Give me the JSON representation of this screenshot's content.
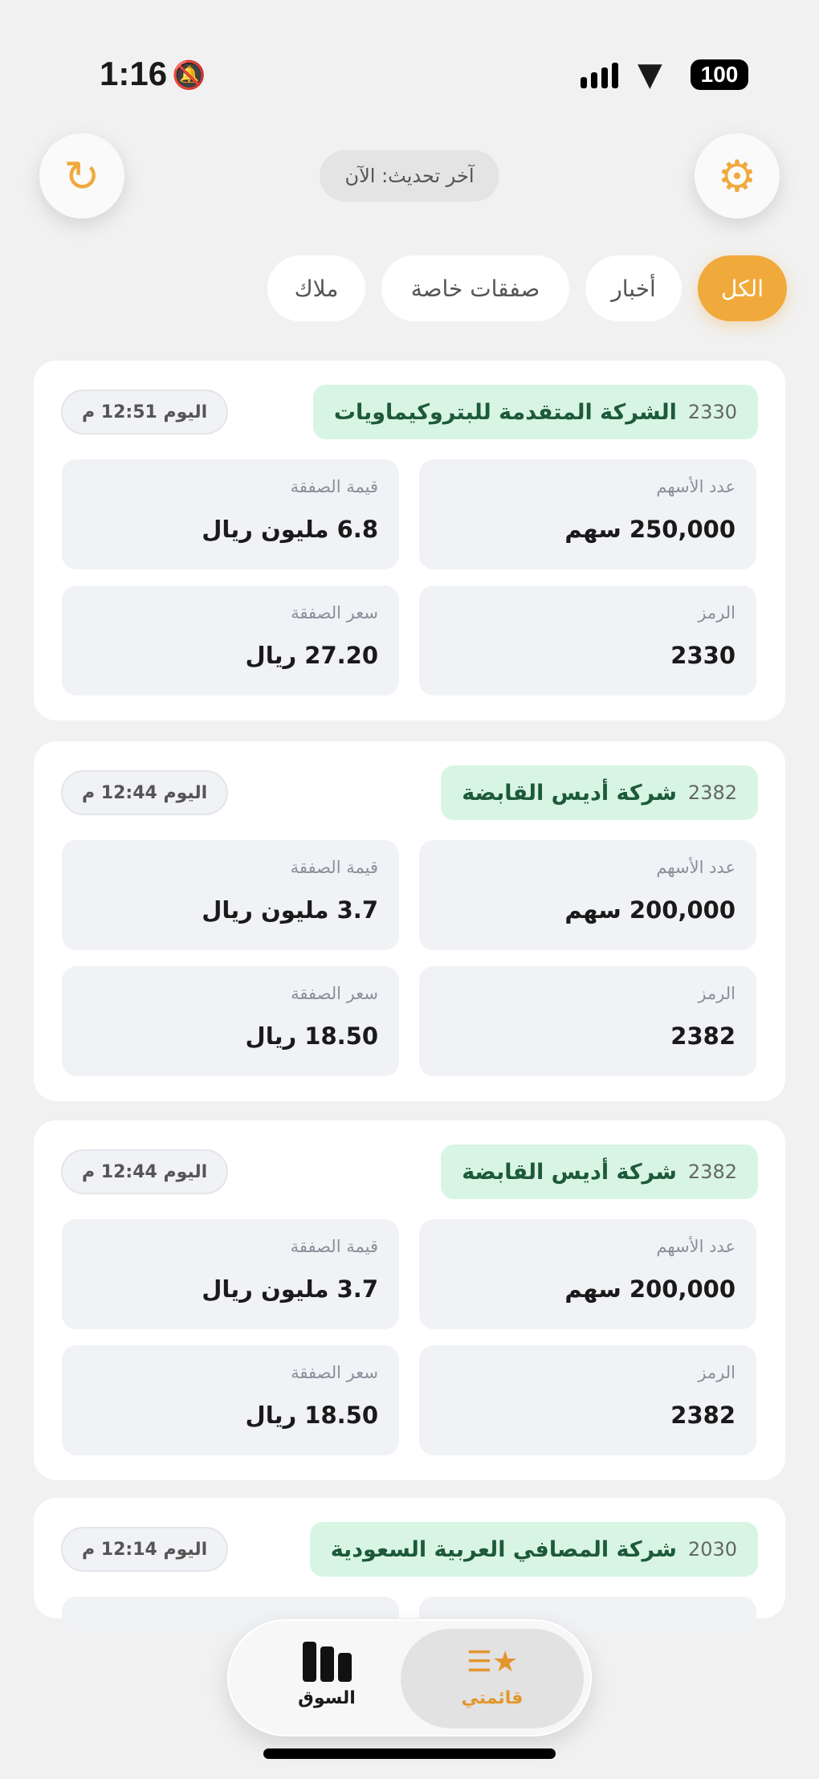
{
  "status_bar": {
    "time": "1:16",
    "battery": "100",
    "icons": [
      "bell-slash-icon",
      "signal-icon",
      "wifi-icon",
      "battery-icon"
    ]
  },
  "header": {
    "last_update": "آخر تحديث: الآن",
    "settings_icon": "gear-icon",
    "refresh_icon": "refresh-icon"
  },
  "filters": [
    {
      "label": "الكل",
      "active": true
    },
    {
      "label": "أخبار"
    },
    {
      "label": "صفقات خاصة"
    },
    {
      "label": "ملاك"
    }
  ],
  "labels": {
    "shares": "عدد الأسهم",
    "value": "قيمة الصفقة",
    "symbol": "الرمز",
    "price": "سعر الصفقة"
  },
  "deals": [
    {
      "code": "2330",
      "name": "الشركة المتقدمة للبتروكيماويات",
      "time": "اليوم 12:51 م",
      "shares": "250,000 سهم",
      "value": "6.8 مليون ريال",
      "symbol": "2330",
      "price": "27.20 ريال"
    },
    {
      "code": "2382",
      "name": "شركة أديس القابضة",
      "time": "اليوم 12:44 م",
      "shares": "200,000 سهم",
      "value": "3.7 مليون ريال",
      "symbol": "2382",
      "price": "18.50 ريال"
    },
    {
      "code": "2382",
      "name": "شركة أديس القابضة",
      "time": "اليوم 12:44 م",
      "shares": "200,000 سهم",
      "value": "3.7 مليون ريال",
      "symbol": "2382",
      "price": "18.50 ريال"
    },
    {
      "code": "2030",
      "name": "شركة المصافي العربية السعودية",
      "time": "اليوم 12:14 م"
    }
  ],
  "nav": {
    "my_list": "قائمتي",
    "market": "السوق",
    "active": "my_list"
  },
  "colors": {
    "accent": "#f0a93b",
    "company_bg": "#d8f5e3",
    "company_text": "#1d5a3a"
  }
}
